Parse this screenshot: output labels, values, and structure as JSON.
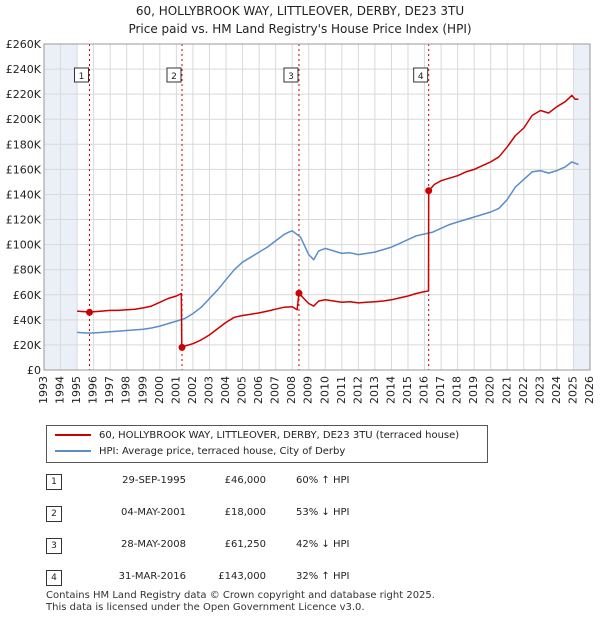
{
  "title": {
    "line1": "60, HOLLYBROOK WAY, LITTLEOVER, DERBY, DE23 3TU",
    "line2": "Price paid vs. HM Land Registry's House Price Index (HPI)"
  },
  "colors": {
    "price": "#cc0000",
    "hpi": "#5b8ec9",
    "marker_line": "#cc0000",
    "shade": "#eaeff8"
  },
  "chart_data": {
    "type": "line",
    "title": "Price paid vs. HM Land Registry's House Price Index (HPI)",
    "xlabel": "",
    "ylabel": "",
    "xlim": [
      1993,
      2026
    ],
    "ylim": [
      0,
      260000
    ],
    "grid": true,
    "y_ticks": [
      {
        "value": 0,
        "label": "£0"
      },
      {
        "value": 20000,
        "label": "£20K"
      },
      {
        "value": 40000,
        "label": "£40K"
      },
      {
        "value": 60000,
        "label": "£60K"
      },
      {
        "value": 80000,
        "label": "£80K"
      },
      {
        "value": 100000,
        "label": "£100K"
      },
      {
        "value": 120000,
        "label": "£120K"
      },
      {
        "value": 140000,
        "label": "£140K"
      },
      {
        "value": 160000,
        "label": "£160K"
      },
      {
        "value": 180000,
        "label": "£180K"
      },
      {
        "value": 200000,
        "label": "£200K"
      },
      {
        "value": 220000,
        "label": "£220K"
      },
      {
        "value": 240000,
        "label": "£240K"
      },
      {
        "value": 260000,
        "label": "£260K"
      }
    ],
    "x_ticks": [
      "1993",
      "1994",
      "1995",
      "1996",
      "1997",
      "1998",
      "1999",
      "2000",
      "2001",
      "2002",
      "2003",
      "2004",
      "2005",
      "2006",
      "2007",
      "2008",
      "2009",
      "2010",
      "2011",
      "2012",
      "2013",
      "2014",
      "2015",
      "2016",
      "2017",
      "2018",
      "2019",
      "2020",
      "2021",
      "2022",
      "2023",
      "2024",
      "2025",
      "2026"
    ],
    "shaded_ranges": [
      [
        1993,
        1995.0
      ],
      [
        2025.0,
        2026
      ]
    ],
    "series": [
      {
        "name": "60, HOLLYBROOK WAY, LITTLEOVER, DERBY, DE23 3TU (terraced house)",
        "color": "#cc0000",
        "points": [
          [
            1995.0,
            47000
          ],
          [
            1995.5,
            46500
          ],
          [
            1995.75,
            46000
          ],
          [
            1996.0,
            46500
          ],
          [
            1996.5,
            47000
          ],
          [
            1997.0,
            47500
          ],
          [
            1997.5,
            47500
          ],
          [
            1998.0,
            48000
          ],
          [
            1998.5,
            48500
          ],
          [
            1999.0,
            49500
          ],
          [
            1999.5,
            51000
          ],
          [
            2000.0,
            54000
          ],
          [
            2000.5,
            57000
          ],
          [
            2001.0,
            59000
          ],
          [
            2001.3,
            61000
          ],
          [
            2001.33,
            18000
          ],
          [
            2001.6,
            19500
          ],
          [
            2002.0,
            21000
          ],
          [
            2002.5,
            24000
          ],
          [
            2003.0,
            28000
          ],
          [
            2003.5,
            33000
          ],
          [
            2004.0,
            38000
          ],
          [
            2004.5,
            42000
          ],
          [
            2005.0,
            43500
          ],
          [
            2005.5,
            44500
          ],
          [
            2006.0,
            45500
          ],
          [
            2006.5,
            47000
          ],
          [
            2007.0,
            48500
          ],
          [
            2007.5,
            50000
          ],
          [
            2008.0,
            50500
          ],
          [
            2008.3,
            48000
          ],
          [
            2008.41,
            61250
          ],
          [
            2008.7,
            57000
          ],
          [
            2009.0,
            53000
          ],
          [
            2009.3,
            51000
          ],
          [
            2009.6,
            55000
          ],
          [
            2010.0,
            56000
          ],
          [
            2010.5,
            55000
          ],
          [
            2011.0,
            54000
          ],
          [
            2011.5,
            54500
          ],
          [
            2012.0,
            53500
          ],
          [
            2012.5,
            54000
          ],
          [
            2013.0,
            54500
          ],
          [
            2013.5,
            55000
          ],
          [
            2014.0,
            56000
          ],
          [
            2014.5,
            57500
          ],
          [
            2015.0,
            59000
          ],
          [
            2015.5,
            61000
          ],
          [
            2016.0,
            62500
          ],
          [
            2016.24,
            63000
          ],
          [
            2016.25,
            143000
          ],
          [
            2016.6,
            148000
          ],
          [
            2017.0,
            151000
          ],
          [
            2017.5,
            153000
          ],
          [
            2018.0,
            155000
          ],
          [
            2018.5,
            158000
          ],
          [
            2019.0,
            160000
          ],
          [
            2019.5,
            163000
          ],
          [
            2020.0,
            166000
          ],
          [
            2020.5,
            170000
          ],
          [
            2021.0,
            178000
          ],
          [
            2021.5,
            187000
          ],
          [
            2022.0,
            193000
          ],
          [
            2022.5,
            203000
          ],
          [
            2023.0,
            207000
          ],
          [
            2023.5,
            205000
          ],
          [
            2024.0,
            210000
          ],
          [
            2024.5,
            214000
          ],
          [
            2024.9,
            219000
          ],
          [
            2025.1,
            216000
          ],
          [
            2025.3,
            216000
          ]
        ]
      },
      {
        "name": "HPI: Average price, terraced house, City of Derby",
        "color": "#5b8ec9",
        "points": [
          [
            1995.0,
            30000
          ],
          [
            1995.5,
            29500
          ],
          [
            1996.0,
            29500
          ],
          [
            1996.5,
            30000
          ],
          [
            1997.0,
            30500
          ],
          [
            1997.5,
            31000
          ],
          [
            1998.0,
            31500
          ],
          [
            1998.5,
            32000
          ],
          [
            1999.0,
            32500
          ],
          [
            1999.5,
            33500
          ],
          [
            2000.0,
            35000
          ],
          [
            2000.5,
            37000
          ],
          [
            2001.0,
            39000
          ],
          [
            2001.5,
            41000
          ],
          [
            2002.0,
            45000
          ],
          [
            2002.5,
            50000
          ],
          [
            2003.0,
            57000
          ],
          [
            2003.5,
            64000
          ],
          [
            2004.0,
            72000
          ],
          [
            2004.5,
            80000
          ],
          [
            2005.0,
            86000
          ],
          [
            2005.5,
            90000
          ],
          [
            2006.0,
            94000
          ],
          [
            2006.5,
            98000
          ],
          [
            2007.0,
            103000
          ],
          [
            2007.5,
            108000
          ],
          [
            2007.8,
            110000
          ],
          [
            2008.0,
            111000
          ],
          [
            2008.5,
            106000
          ],
          [
            2009.0,
            92000
          ],
          [
            2009.3,
            88000
          ],
          [
            2009.6,
            95000
          ],
          [
            2010.0,
            97000
          ],
          [
            2010.5,
            95000
          ],
          [
            2011.0,
            93000
          ],
          [
            2011.5,
            93500
          ],
          [
            2012.0,
            92000
          ],
          [
            2012.5,
            93000
          ],
          [
            2013.0,
            94000
          ],
          [
            2013.5,
            96000
          ],
          [
            2014.0,
            98000
          ],
          [
            2014.5,
            101000
          ],
          [
            2015.0,
            104000
          ],
          [
            2015.5,
            107000
          ],
          [
            2016.0,
            108500
          ],
          [
            2016.5,
            110000
          ],
          [
            2017.0,
            113000
          ],
          [
            2017.5,
            116000
          ],
          [
            2018.0,
            118000
          ],
          [
            2018.5,
            120000
          ],
          [
            2019.0,
            122000
          ],
          [
            2019.5,
            124000
          ],
          [
            2020.0,
            126000
          ],
          [
            2020.5,
            129000
          ],
          [
            2021.0,
            136000
          ],
          [
            2021.5,
            146000
          ],
          [
            2022.0,
            152000
          ],
          [
            2022.5,
            158000
          ],
          [
            2023.0,
            159000
          ],
          [
            2023.5,
            157000
          ],
          [
            2024.0,
            159000
          ],
          [
            2024.5,
            162000
          ],
          [
            2024.9,
            166000
          ],
          [
            2025.3,
            164000
          ]
        ]
      }
    ],
    "sales": [
      {
        "id": "1",
        "x": 1995.75,
        "y": 46000
      },
      {
        "id": "2",
        "x": 2001.34,
        "y": 18000
      },
      {
        "id": "3",
        "x": 2008.41,
        "y": 61250
      },
      {
        "id": "4",
        "x": 2016.25,
        "y": 143000
      }
    ]
  },
  "legend": {
    "price_label": "60, HOLLYBROOK WAY, LITTLEOVER, DERBY, DE23 3TU (terraced house)",
    "hpi_label": "HPI: Average price, terraced house, City of Derby"
  },
  "transactions": [
    {
      "num": "1",
      "date": "29-SEP-1995",
      "price": "£46,000",
      "hpi": "60% ↑ HPI"
    },
    {
      "num": "2",
      "date": "04-MAY-2001",
      "price": "£18,000",
      "hpi": "53% ↓ HPI"
    },
    {
      "num": "3",
      "date": "28-MAY-2008",
      "price": "£61,250",
      "hpi": "42% ↓ HPI"
    },
    {
      "num": "4",
      "date": "31-MAR-2016",
      "price": "£143,000",
      "hpi": "32% ↑ HPI"
    }
  ],
  "footer": {
    "line1": "Contains HM Land Registry data © Crown copyright and database right 2025.",
    "line2": "This data is licensed under the Open Government Licence v3.0."
  }
}
